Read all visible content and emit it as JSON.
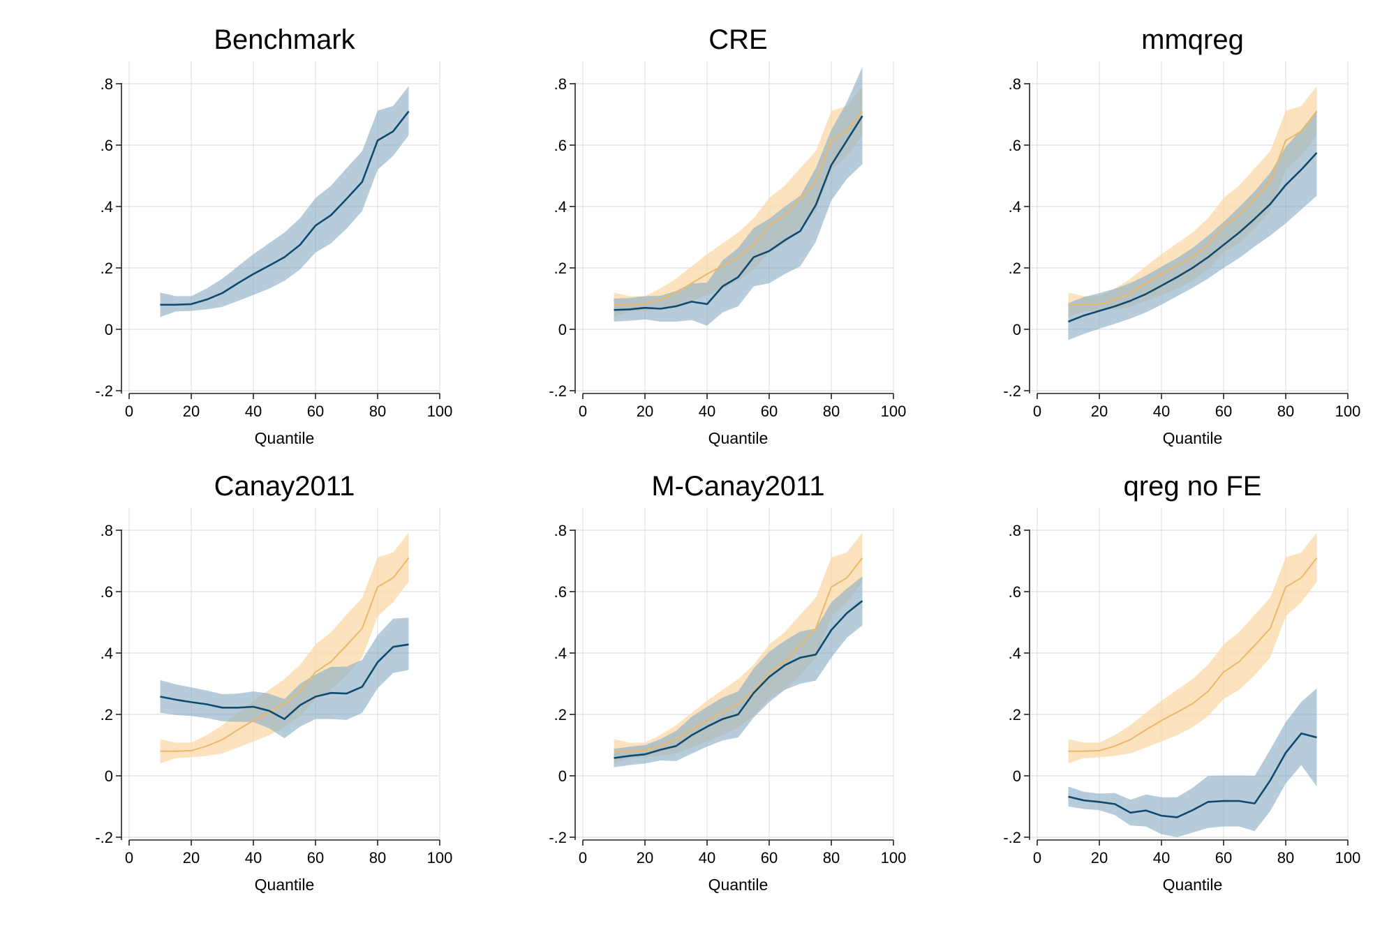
{
  "colors": {
    "estimate_line": "#0f4a6e",
    "estimate_band": "#8fb0c8",
    "benchmark_line": "#eab868",
    "benchmark_band": "#fbd9a8",
    "grid": "#e3e3e3",
    "axis": "#222222"
  },
  "chart_data": [
    {
      "type": "line",
      "title": "Benchmark",
      "xlabel": "Quantile",
      "ylabel": "",
      "xlim": [
        0,
        100
      ],
      "ylim": [
        -0.2,
        0.8
      ],
      "x_ticks": [
        0,
        20,
        40,
        60,
        80,
        100
      ],
      "x_tick_labels": [
        "0",
        "20",
        "40",
        "60",
        "80",
        "100"
      ],
      "y_ticks": [
        -0.2,
        0,
        0.2,
        0.4,
        0.6,
        0.8
      ],
      "y_tick_labels": [
        "-.2",
        "0",
        ".2",
        ".4",
        ".6",
        ".8"
      ],
      "grid": true,
      "x": [
        10,
        15,
        20,
        25,
        30,
        35,
        40,
        45,
        50,
        55,
        60,
        65,
        70,
        75,
        80,
        85,
        90
      ],
      "series": [
        {
          "role": "estimate",
          "values": [
            0.08,
            0.08,
            0.082,
            0.097,
            0.118,
            0.15,
            0.18,
            0.207,
            0.235,
            0.275,
            0.338,
            0.372,
            0.425,
            0.48,
            0.615,
            0.645,
            0.71
          ],
          "lower": [
            0.04,
            0.058,
            0.06,
            0.065,
            0.073,
            0.092,
            0.112,
            0.132,
            0.158,
            0.195,
            0.25,
            0.28,
            0.328,
            0.385,
            0.52,
            0.565,
            0.632
          ],
          "upper": [
            0.12,
            0.108,
            0.108,
            0.133,
            0.165,
            0.205,
            0.245,
            0.28,
            0.315,
            0.362,
            0.428,
            0.468,
            0.525,
            0.58,
            0.712,
            0.728,
            0.792
          ]
        }
      ]
    },
    {
      "type": "line",
      "title": "CRE",
      "xlabel": "Quantile",
      "ylabel": "",
      "xlim": [
        0,
        100
      ],
      "ylim": [
        -0.2,
        0.8
      ],
      "x_ticks": [
        0,
        20,
        40,
        60,
        80,
        100
      ],
      "x_tick_labels": [
        "0",
        "20",
        "40",
        "60",
        "80",
        "100"
      ],
      "y_ticks": [
        -0.2,
        0,
        0.2,
        0.4,
        0.6,
        0.8
      ],
      "y_tick_labels": [
        "-.2",
        "0",
        ".2",
        ".4",
        ".6",
        ".8"
      ],
      "grid": true,
      "x": [
        10,
        15,
        20,
        25,
        30,
        35,
        40,
        45,
        50,
        55,
        60,
        65,
        70,
        75,
        80,
        85,
        90
      ],
      "series": [
        {
          "role": "benchmark",
          "values": [
            0.08,
            0.08,
            0.082,
            0.097,
            0.118,
            0.15,
            0.18,
            0.207,
            0.235,
            0.275,
            0.338,
            0.372,
            0.425,
            0.48,
            0.615,
            0.645,
            0.71
          ],
          "lower": [
            0.04,
            0.058,
            0.06,
            0.065,
            0.073,
            0.092,
            0.112,
            0.132,
            0.158,
            0.195,
            0.25,
            0.28,
            0.328,
            0.385,
            0.52,
            0.565,
            0.632
          ],
          "upper": [
            0.12,
            0.108,
            0.108,
            0.133,
            0.165,
            0.205,
            0.245,
            0.28,
            0.315,
            0.362,
            0.428,
            0.468,
            0.525,
            0.58,
            0.712,
            0.728,
            0.792
          ]
        },
        {
          "role": "estimate",
          "values": [
            0.063,
            0.065,
            0.07,
            0.067,
            0.075,
            0.09,
            0.082,
            0.14,
            0.17,
            0.235,
            0.255,
            0.29,
            0.32,
            0.405,
            0.535,
            0.615,
            0.695
          ],
          "lower": [
            0.025,
            0.028,
            0.032,
            0.025,
            0.025,
            0.03,
            0.012,
            0.055,
            0.075,
            0.14,
            0.15,
            0.18,
            0.205,
            0.285,
            0.42,
            0.49,
            0.538
          ],
          "upper": [
            0.1,
            0.102,
            0.108,
            0.109,
            0.125,
            0.15,
            0.152,
            0.225,
            0.265,
            0.33,
            0.36,
            0.4,
            0.435,
            0.525,
            0.65,
            0.74,
            0.855
          ]
        }
      ]
    },
    {
      "type": "line",
      "title": "mmqreg",
      "xlabel": "Quantile",
      "ylabel": "",
      "xlim": [
        0,
        100
      ],
      "ylim": [
        -0.2,
        0.8
      ],
      "x_ticks": [
        0,
        20,
        40,
        60,
        80,
        100
      ],
      "x_tick_labels": [
        "0",
        "20",
        "40",
        "60",
        "80",
        "100"
      ],
      "y_ticks": [
        -0.2,
        0,
        0.2,
        0.4,
        0.6,
        0.8
      ],
      "y_tick_labels": [
        "-.2",
        "0",
        ".2",
        ".4",
        ".6",
        ".8"
      ],
      "grid": true,
      "x": [
        10,
        15,
        20,
        25,
        30,
        35,
        40,
        45,
        50,
        55,
        60,
        65,
        70,
        75,
        80,
        85,
        90
      ],
      "series": [
        {
          "role": "benchmark",
          "values": [
            0.08,
            0.08,
            0.082,
            0.097,
            0.118,
            0.15,
            0.18,
            0.207,
            0.235,
            0.275,
            0.338,
            0.372,
            0.425,
            0.48,
            0.615,
            0.645,
            0.71
          ],
          "lower": [
            0.04,
            0.058,
            0.06,
            0.065,
            0.073,
            0.092,
            0.112,
            0.132,
            0.158,
            0.195,
            0.25,
            0.28,
            0.328,
            0.385,
            0.52,
            0.565,
            0.632
          ],
          "upper": [
            0.12,
            0.108,
            0.108,
            0.133,
            0.165,
            0.205,
            0.245,
            0.28,
            0.315,
            0.362,
            0.428,
            0.468,
            0.525,
            0.58,
            0.712,
            0.728,
            0.792
          ]
        },
        {
          "role": "estimate",
          "values": [
            0.025,
            0.045,
            0.06,
            0.075,
            0.093,
            0.115,
            0.142,
            0.17,
            0.2,
            0.235,
            0.275,
            0.315,
            0.36,
            0.408,
            0.47,
            0.52,
            0.575
          ],
          "lower": [
            -0.035,
            -0.015,
            0.002,
            0.018,
            0.035,
            0.055,
            0.08,
            0.108,
            0.135,
            0.165,
            0.2,
            0.232,
            0.27,
            0.305,
            0.345,
            0.39,
            0.435
          ],
          "upper": [
            0.085,
            0.105,
            0.118,
            0.132,
            0.151,
            0.175,
            0.204,
            0.232,
            0.265,
            0.305,
            0.35,
            0.398,
            0.45,
            0.51,
            0.595,
            0.65,
            0.715
          ]
        }
      ]
    },
    {
      "type": "line",
      "title": "Canay2011",
      "xlabel": "Quantile",
      "ylabel": "",
      "xlim": [
        0,
        100
      ],
      "ylim": [
        -0.2,
        0.8
      ],
      "x_ticks": [
        0,
        20,
        40,
        60,
        80,
        100
      ],
      "x_tick_labels": [
        "0",
        "20",
        "40",
        "60",
        "80",
        "100"
      ],
      "y_ticks": [
        -0.2,
        0,
        0.2,
        0.4,
        0.6,
        0.8
      ],
      "y_tick_labels": [
        "-.2",
        "0",
        ".2",
        ".4",
        ".6",
        ".8"
      ],
      "grid": true,
      "x": [
        10,
        15,
        20,
        25,
        30,
        35,
        40,
        45,
        50,
        55,
        60,
        65,
        70,
        75,
        80,
        85,
        90
      ],
      "series": [
        {
          "role": "benchmark",
          "values": [
            0.08,
            0.08,
            0.082,
            0.097,
            0.118,
            0.15,
            0.18,
            0.207,
            0.235,
            0.275,
            0.338,
            0.372,
            0.425,
            0.48,
            0.615,
            0.645,
            0.71
          ],
          "lower": [
            0.04,
            0.058,
            0.06,
            0.065,
            0.073,
            0.092,
            0.112,
            0.132,
            0.158,
            0.195,
            0.25,
            0.28,
            0.328,
            0.385,
            0.52,
            0.565,
            0.632
          ],
          "upper": [
            0.12,
            0.108,
            0.108,
            0.133,
            0.165,
            0.205,
            0.245,
            0.28,
            0.315,
            0.362,
            0.428,
            0.468,
            0.525,
            0.58,
            0.712,
            0.728,
            0.792
          ]
        },
        {
          "role": "estimate",
          "values": [
            0.258,
            0.248,
            0.24,
            0.233,
            0.222,
            0.222,
            0.225,
            0.212,
            0.185,
            0.23,
            0.258,
            0.27,
            0.268,
            0.29,
            0.37,
            0.42,
            0.428
          ],
          "lower": [
            0.205,
            0.198,
            0.195,
            0.188,
            0.178,
            0.176,
            0.175,
            0.155,
            0.122,
            0.16,
            0.185,
            0.185,
            0.182,
            0.205,
            0.285,
            0.335,
            0.345
          ],
          "upper": [
            0.312,
            0.298,
            0.288,
            0.278,
            0.266,
            0.268,
            0.275,
            0.268,
            0.25,
            0.3,
            0.33,
            0.355,
            0.356,
            0.378,
            0.458,
            0.512,
            0.515
          ]
        }
      ]
    },
    {
      "type": "line",
      "title": "M-Canay2011",
      "xlabel": "Quantile",
      "ylabel": "",
      "xlim": [
        0,
        100
      ],
      "ylim": [
        -0.2,
        0.8
      ],
      "x_ticks": [
        0,
        20,
        40,
        60,
        80,
        100
      ],
      "x_tick_labels": [
        "0",
        "20",
        "40",
        "60",
        "80",
        "100"
      ],
      "y_ticks": [
        -0.2,
        0,
        0.2,
        0.4,
        0.6,
        0.8
      ],
      "y_tick_labels": [
        "-.2",
        "0",
        ".2",
        ".4",
        ".6",
        ".8"
      ],
      "grid": true,
      "x": [
        10,
        15,
        20,
        25,
        30,
        35,
        40,
        45,
        50,
        55,
        60,
        65,
        70,
        75,
        80,
        85,
        90
      ],
      "series": [
        {
          "role": "benchmark",
          "values": [
            0.08,
            0.08,
            0.082,
            0.097,
            0.118,
            0.15,
            0.18,
            0.207,
            0.235,
            0.275,
            0.338,
            0.372,
            0.425,
            0.48,
            0.615,
            0.645,
            0.71
          ],
          "lower": [
            0.04,
            0.058,
            0.06,
            0.065,
            0.073,
            0.092,
            0.112,
            0.132,
            0.158,
            0.195,
            0.25,
            0.28,
            0.328,
            0.385,
            0.52,
            0.565,
            0.632
          ],
          "upper": [
            0.12,
            0.108,
            0.108,
            0.133,
            0.165,
            0.205,
            0.245,
            0.28,
            0.315,
            0.362,
            0.428,
            0.468,
            0.525,
            0.58,
            0.712,
            0.728,
            0.792
          ]
        },
        {
          "role": "estimate",
          "values": [
            0.058,
            0.065,
            0.07,
            0.085,
            0.097,
            0.132,
            0.16,
            0.185,
            0.2,
            0.27,
            0.322,
            0.36,
            0.385,
            0.395,
            0.475,
            0.53,
            0.57
          ],
          "lower": [
            0.028,
            0.035,
            0.04,
            0.05,
            0.048,
            0.072,
            0.095,
            0.115,
            0.125,
            0.19,
            0.24,
            0.28,
            0.3,
            0.31,
            0.385,
            0.45,
            0.49
          ],
          "upper": [
            0.088,
            0.095,
            0.1,
            0.12,
            0.146,
            0.192,
            0.225,
            0.255,
            0.275,
            0.35,
            0.404,
            0.44,
            0.47,
            0.48,
            0.565,
            0.61,
            0.65
          ]
        }
      ]
    },
    {
      "type": "line",
      "title": "qreg no FE",
      "xlabel": "Quantile",
      "ylabel": "",
      "xlim": [
        0,
        100
      ],
      "ylim": [
        -0.2,
        0.8
      ],
      "x_ticks": [
        0,
        20,
        40,
        60,
        80,
        100
      ],
      "x_tick_labels": [
        "0",
        "20",
        "40",
        "60",
        "80",
        "100"
      ],
      "y_ticks": [
        -0.2,
        0,
        0.2,
        0.4,
        0.6,
        0.8
      ],
      "y_tick_labels": [
        "-.2",
        "0",
        ".2",
        ".4",
        ".6",
        ".8"
      ],
      "grid": true,
      "x": [
        10,
        15,
        20,
        25,
        30,
        35,
        40,
        45,
        50,
        55,
        60,
        65,
        70,
        75,
        80,
        85,
        90
      ],
      "series": [
        {
          "role": "benchmark",
          "values": [
            0.08,
            0.08,
            0.082,
            0.097,
            0.118,
            0.15,
            0.18,
            0.207,
            0.235,
            0.275,
            0.338,
            0.372,
            0.425,
            0.48,
            0.615,
            0.645,
            0.71
          ],
          "lower": [
            0.04,
            0.058,
            0.06,
            0.065,
            0.073,
            0.092,
            0.112,
            0.132,
            0.158,
            0.195,
            0.25,
            0.28,
            0.328,
            0.385,
            0.52,
            0.565,
            0.632
          ],
          "upper": [
            0.12,
            0.108,
            0.108,
            0.133,
            0.165,
            0.205,
            0.245,
            0.28,
            0.315,
            0.362,
            0.428,
            0.468,
            0.525,
            0.58,
            0.712,
            0.728,
            0.792
          ]
        },
        {
          "role": "estimate",
          "values": [
            -0.068,
            -0.08,
            -0.085,
            -0.092,
            -0.12,
            -0.113,
            -0.13,
            -0.135,
            -0.112,
            -0.085,
            -0.082,
            -0.082,
            -0.09,
            -0.015,
            0.075,
            0.138,
            0.125
          ],
          "lower": [
            -0.1,
            -0.108,
            -0.112,
            -0.128,
            -0.162,
            -0.165,
            -0.19,
            -0.2,
            -0.185,
            -0.17,
            -0.165,
            -0.165,
            -0.18,
            -0.115,
            -0.025,
            0.035,
            -0.035
          ],
          "upper": [
            -0.035,
            -0.052,
            -0.058,
            -0.056,
            -0.078,
            -0.061,
            -0.07,
            -0.07,
            -0.039,
            0.0,
            0.001,
            0.001,
            0.0,
            0.085,
            0.175,
            0.241,
            0.285
          ]
        }
      ]
    }
  ]
}
